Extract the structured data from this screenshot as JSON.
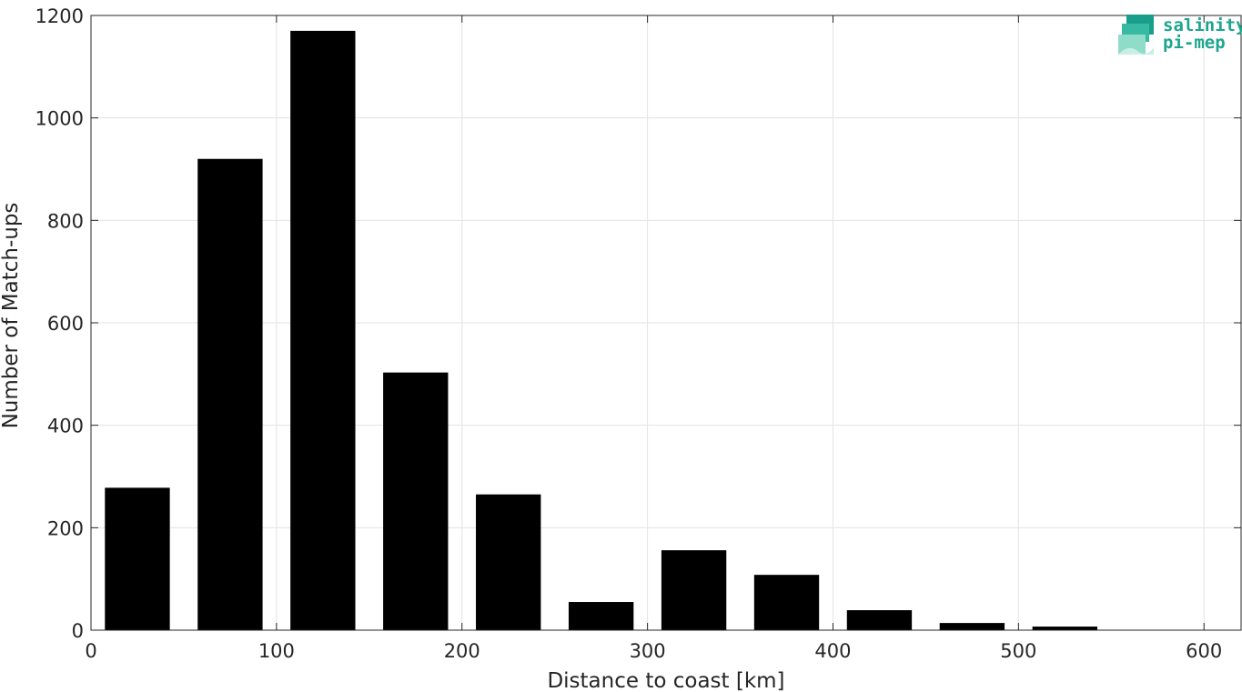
{
  "chart_data": {
    "type": "bar",
    "title": "",
    "xlabel": "Distance to coast [km]",
    "ylabel": "Number of Match-ups",
    "x": [
      25,
      75,
      125,
      175,
      225,
      275,
      325,
      375,
      425,
      475,
      525
    ],
    "values": [
      278,
      920,
      1170,
      503,
      265,
      55,
      156,
      108,
      39,
      14,
      7
    ],
    "bin_width": 50,
    "bar_width_fraction": 0.7,
    "xlim": [
      0,
      620
    ],
    "ylim": [
      0,
      1200
    ],
    "xticks": [
      0,
      100,
      200,
      300,
      400,
      500,
      600
    ],
    "yticks": [
      0,
      200,
      400,
      600,
      800,
      1000,
      1200
    ],
    "grid": true,
    "bar_color": "#000000",
    "grid_color": "#e3e3e3"
  },
  "logo": {
    "line1": "salinity",
    "line2": "pi-mep",
    "color": "#1fa58f"
  }
}
